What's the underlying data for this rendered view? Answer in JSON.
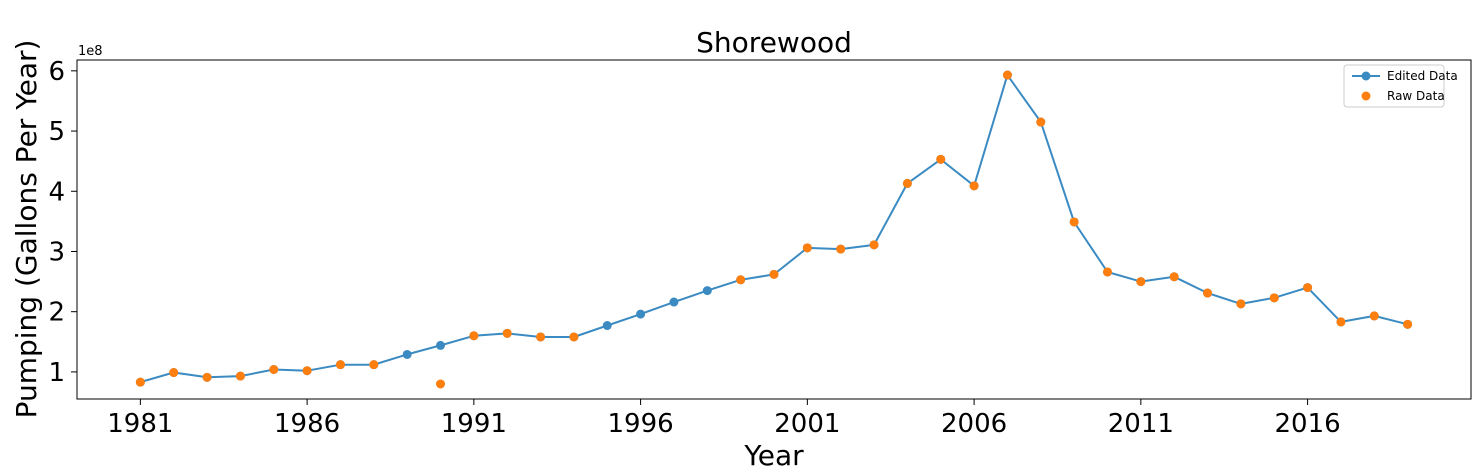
{
  "chart_data": {
    "type": "line",
    "title": "Shorewood",
    "xlabel": "Year",
    "ylabel": "Pumping (Gallons Per Year)",
    "y_offset_label": "1e8",
    "x_ticks": [
      1981,
      1986,
      1991,
      1996,
      2001,
      2006,
      2011,
      2016
    ],
    "y_ticks": [
      1,
      2,
      3,
      4,
      5,
      6
    ],
    "xlim": [
      1979.1,
      2020.9
    ],
    "ylim": [
      0.55,
      6.18
    ],
    "grid": false,
    "legend_position": "top-right",
    "series": [
      {
        "name": "Edited Data",
        "style": "line-marker",
        "color": "#3b8bc2",
        "x": [
          1981,
          1982,
          1983,
          1984,
          1985,
          1986,
          1987,
          1988,
          1989,
          1990,
          1991,
          1992,
          1993,
          1994,
          1995,
          1996,
          1997,
          1998,
          1999,
          2000,
          2001,
          2002,
          2003,
          2004,
          2005,
          2006,
          2007,
          2008,
          2009,
          2010,
          2011,
          2012,
          2013,
          2014,
          2015,
          2016,
          2017,
          2018,
          2019
        ],
        "y": [
          0.83,
          0.99,
          0.91,
          0.93,
          1.04,
          1.02,
          1.12,
          1.12,
          1.29,
          1.44,
          1.6,
          1.64,
          1.58,
          1.58,
          1.77,
          1.96,
          2.16,
          2.35,
          2.53,
          2.62,
          3.06,
          3.04,
          3.11,
          4.13,
          4.53,
          4.09,
          5.93,
          5.15,
          3.49,
          2.66,
          2.5,
          2.58,
          2.31,
          2.13,
          2.23,
          2.4,
          1.83,
          1.93,
          1.79
        ]
      },
      {
        "name": "Raw Data",
        "style": "marker",
        "color": "#ff7f0e",
        "x": [
          1981,
          1982,
          1983,
          1984,
          1985,
          1986,
          1987,
          1988,
          1990,
          1991,
          1992,
          1993,
          1994,
          1999,
          2000,
          2001,
          2002,
          2003,
          2004,
          2005,
          2006,
          2007,
          2008,
          2009,
          2010,
          2011,
          2012,
          2013,
          2014,
          2015,
          2016,
          2017,
          2018,
          2019
        ],
        "y": [
          0.83,
          0.99,
          0.91,
          0.93,
          1.04,
          1.02,
          1.12,
          1.12,
          0.8,
          1.6,
          1.64,
          1.58,
          1.58,
          2.53,
          2.62,
          3.06,
          3.04,
          3.11,
          4.13,
          4.53,
          4.09,
          5.93,
          5.15,
          3.49,
          2.66,
          2.5,
          2.58,
          2.31,
          2.13,
          2.23,
          2.4,
          1.83,
          1.93,
          1.79
        ]
      }
    ]
  }
}
